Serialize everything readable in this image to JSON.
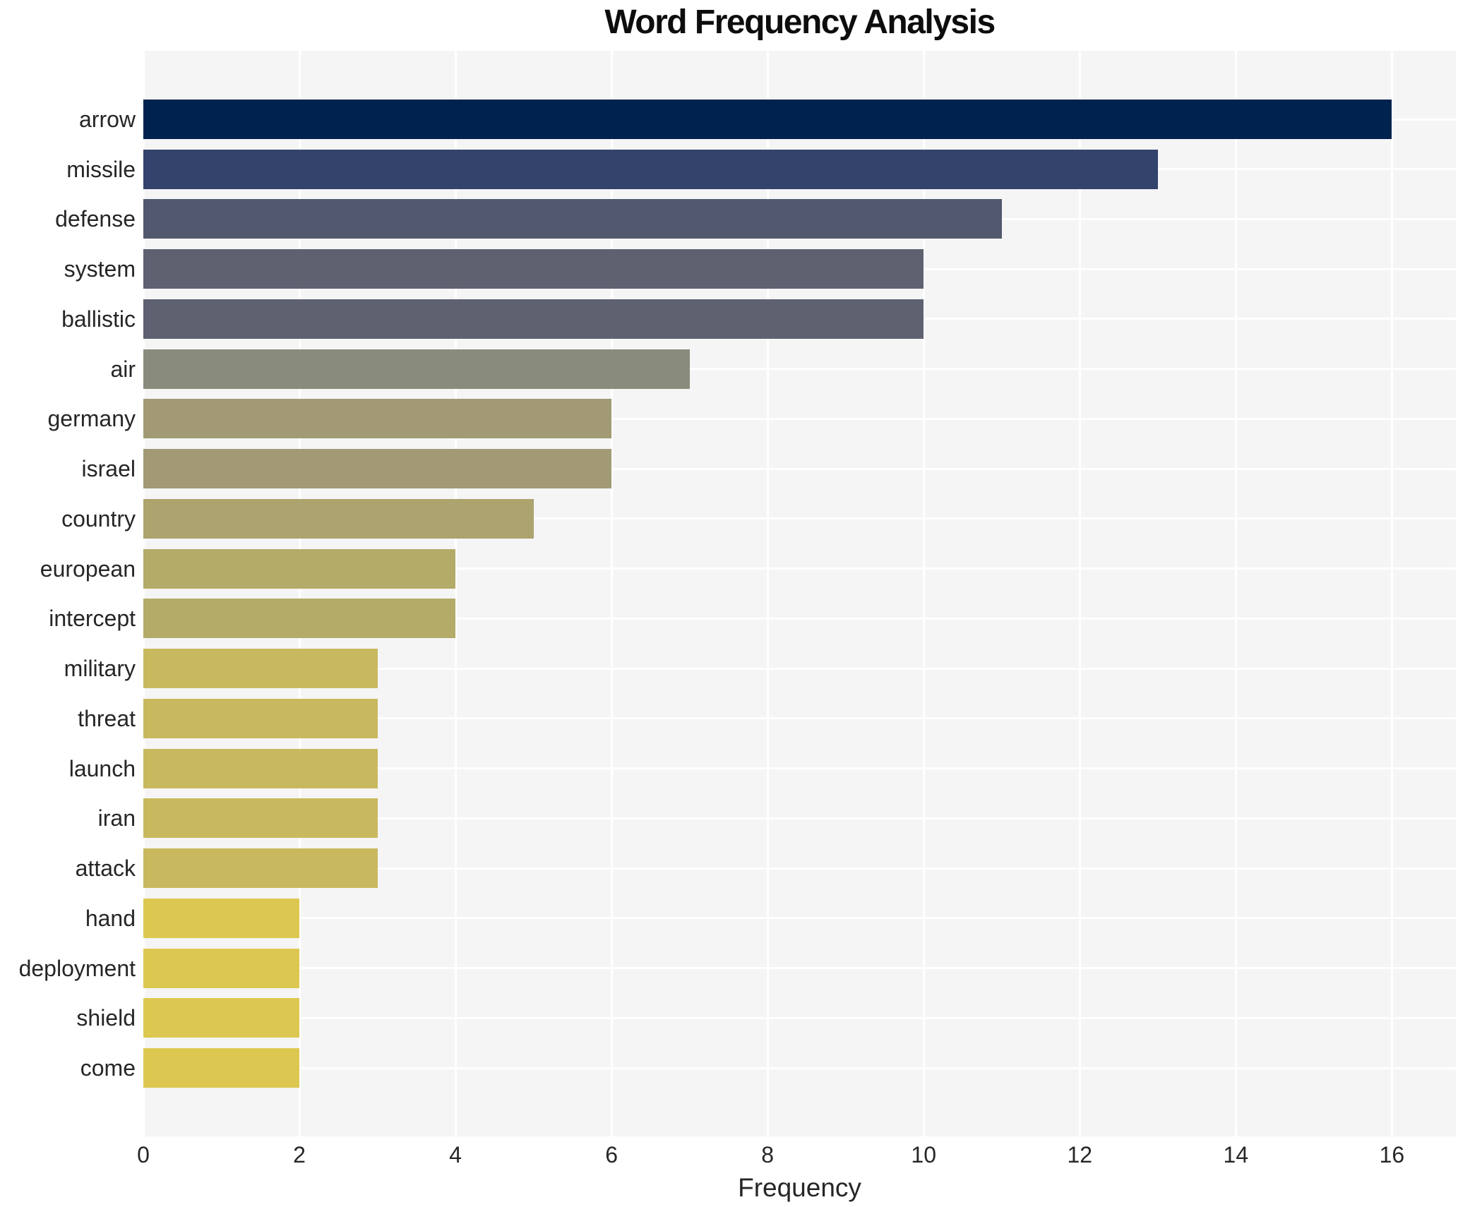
{
  "title": "Word Frequency Analysis",
  "chart_data": {
    "type": "bar",
    "orientation": "horizontal",
    "title": "Word Frequency Analysis",
    "xlabel": "Frequency",
    "ylabel": "",
    "categories": [
      "arrow",
      "missile",
      "defense",
      "system",
      "ballistic",
      "air",
      "germany",
      "israel",
      "country",
      "european",
      "intercept",
      "military",
      "threat",
      "launch",
      "iran",
      "attack",
      "hand",
      "deployment",
      "shield",
      "come"
    ],
    "values": [
      16,
      13,
      11,
      10,
      10,
      7,
      6,
      6,
      5,
      4,
      4,
      3,
      3,
      3,
      3,
      3,
      2,
      2,
      2,
      2
    ],
    "bar_colors": [
      "#00224e",
      "#33436b",
      "#52596e",
      "#5d6170",
      "#5d6170",
      "#898b7c",
      "#a19a74",
      "#a19a74",
      "#aca36e",
      "#b3ab67",
      "#b3ab67",
      "#c9b95e",
      "#c9b95e",
      "#c9b95e",
      "#c9b95e",
      "#c9b95e",
      "#dcc850",
      "#dcc850",
      "#dcc850",
      "#dcc850"
    ],
    "xticks": [
      0,
      2,
      4,
      6,
      8,
      10,
      12,
      14,
      16
    ],
    "xlim": [
      0,
      16.82
    ],
    "grid": true,
    "legend": false,
    "plot_background": "#f5f5f6",
    "figure_background": "#ffffff",
    "gridline_color": "#ffffff",
    "text_color": "#262626"
  }
}
